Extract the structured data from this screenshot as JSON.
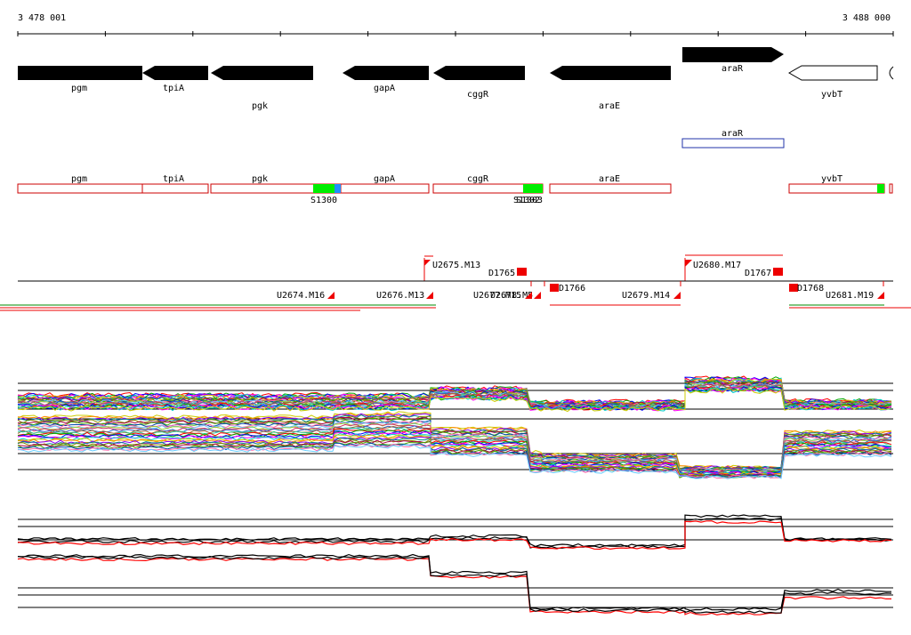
{
  "ruler": {
    "start": "3 478 001",
    "end": "3 488 000"
  },
  "genes": [
    {
      "name": "pgm",
      "strand": "+",
      "filled": true
    },
    {
      "name": "tpiA",
      "strand": "-",
      "filled": true
    },
    {
      "name": "pgk",
      "strand": "-",
      "filled": true
    },
    {
      "name": "gapA",
      "strand": "-",
      "filled": true
    },
    {
      "name": "cggR",
      "strand": "-",
      "filled": true
    },
    {
      "name": "araE",
      "strand": "-",
      "filled": true
    },
    {
      "name": "araR",
      "strand": "+",
      "filled": true
    },
    {
      "name": "yvbT",
      "strand": "-",
      "filled": false
    }
  ],
  "regulator_box": {
    "label": "araR"
  },
  "transcripts": [
    {
      "name": "pgm"
    },
    {
      "name": "tpiA"
    },
    {
      "name": "pgk"
    },
    {
      "name": "gapA"
    },
    {
      "name": "cggR"
    },
    {
      "name": "araE"
    },
    {
      "name": "yvbT"
    }
  ],
  "sites": [
    {
      "label": "S1300"
    },
    {
      "label": "S1302"
    },
    {
      "label": "S1303"
    }
  ],
  "segments_upper": [
    {
      "label": "U2675.M13"
    },
    {
      "label": "D1765"
    },
    {
      "label": "U2680.M17"
    },
    {
      "label": "D1767"
    }
  ],
  "segments_lower": [
    {
      "label": "U2674.M16"
    },
    {
      "label": "U2676.M13"
    },
    {
      "label": "U2677.M15"
    },
    {
      "label": "U2678.M5"
    },
    {
      "label": "D1766"
    },
    {
      "label": "U2679.M14"
    },
    {
      "label": "D1768"
    },
    {
      "label": "U2681.M19"
    }
  ],
  "colors": {
    "gene_fill": "#000000",
    "transcript": "#cc0000",
    "site_green": "#00ee00",
    "site_blue": "#1e90ff",
    "box_blue": "#2233aa",
    "segment_red": "#ee0000",
    "mean_red": "#ff0000"
  }
}
